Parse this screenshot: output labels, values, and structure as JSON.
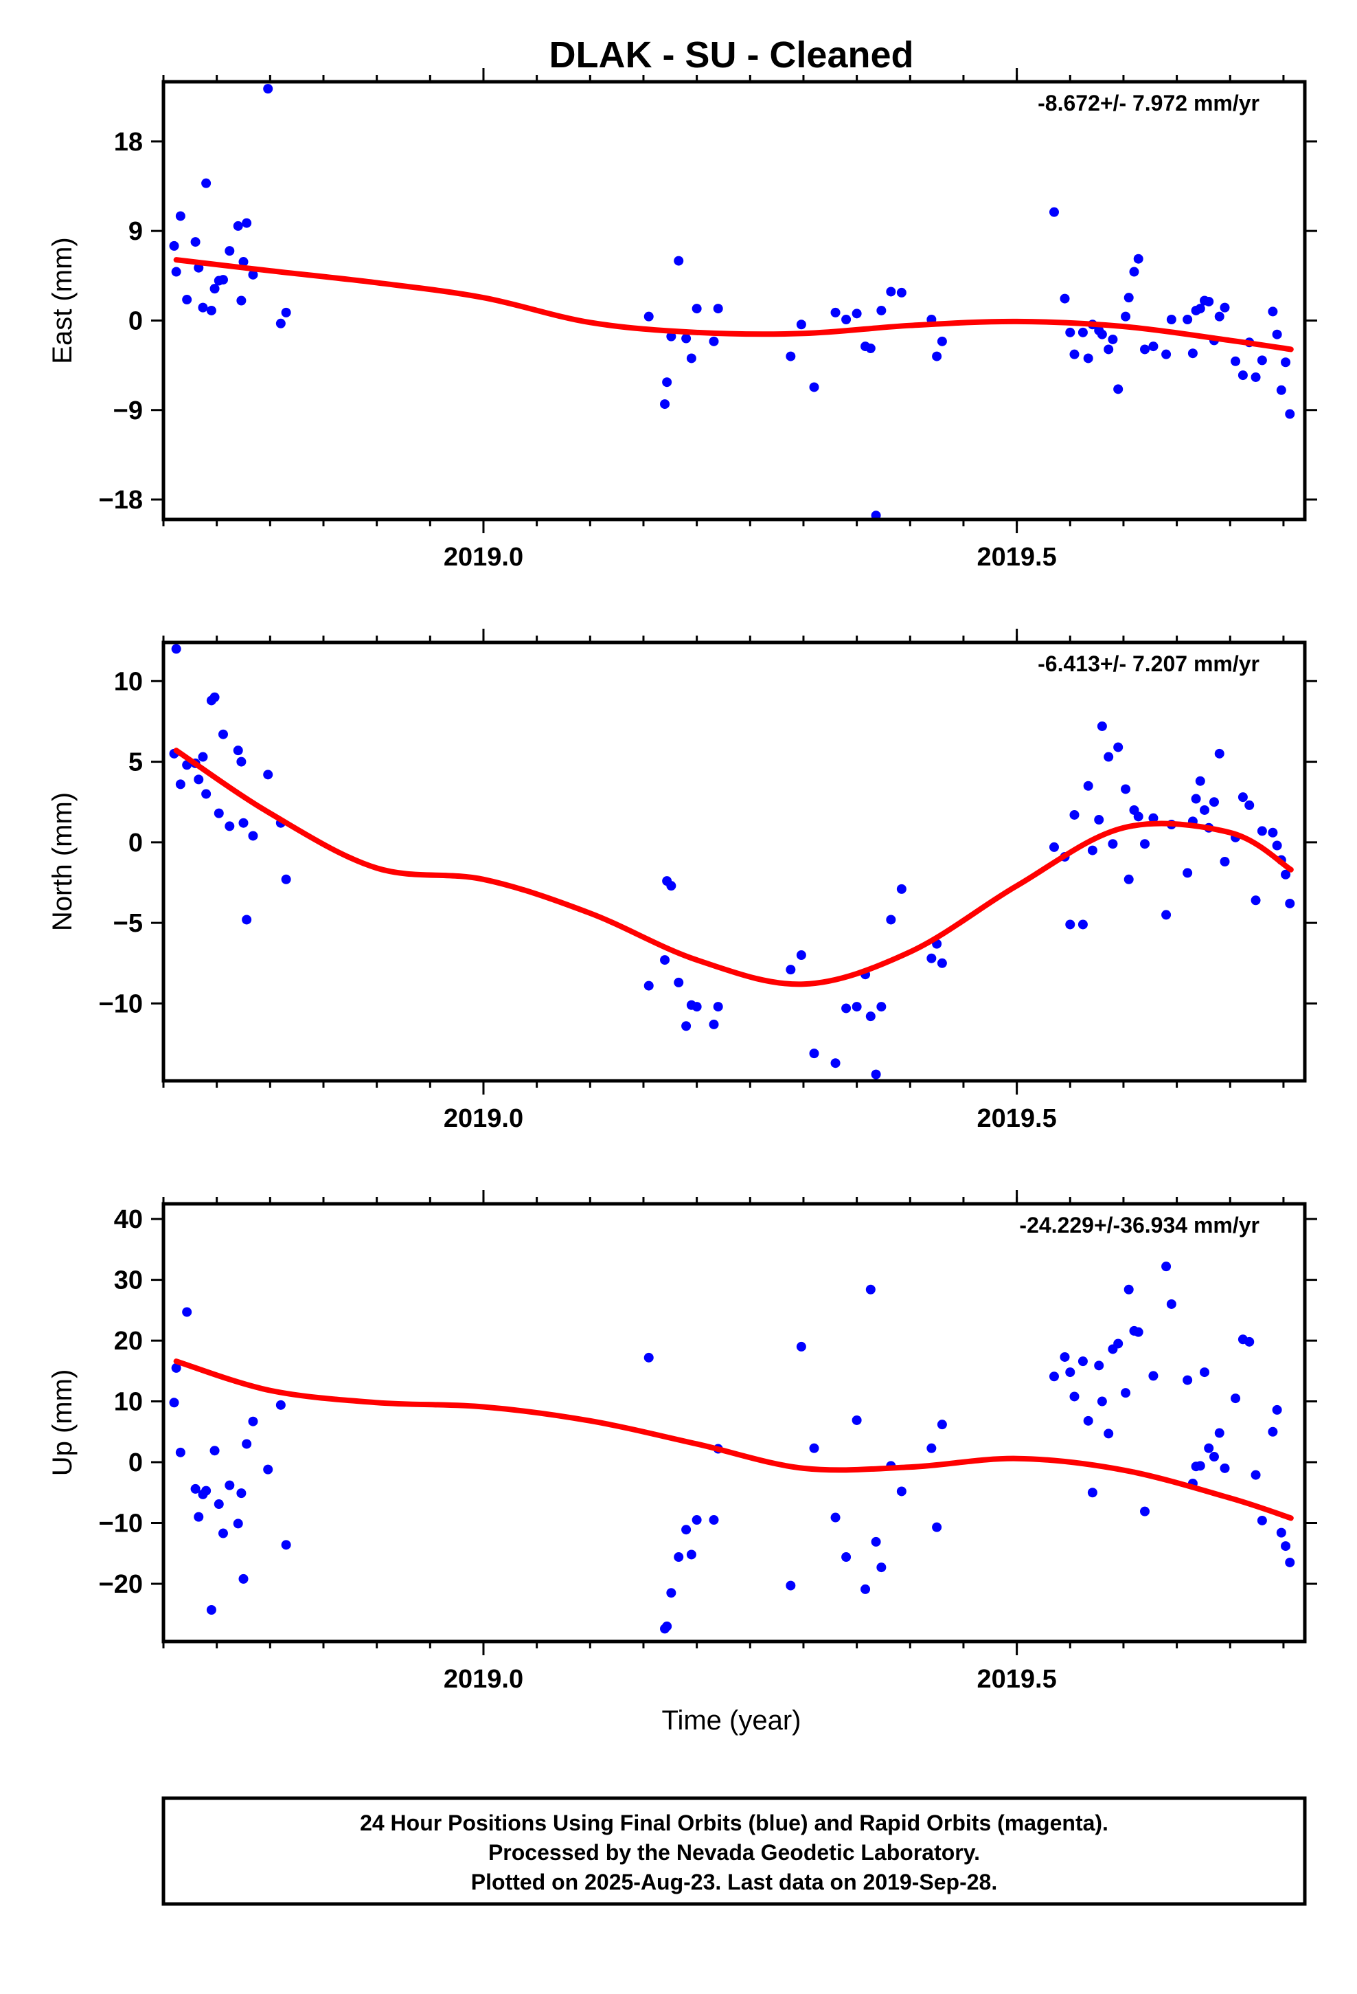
{
  "chart_data": [
    {
      "type": "scatter",
      "title": "DLAK  - SU - Cleaned",
      "xlabel": "",
      "ylabel": "East (mm)",
      "xlim": [
        2018.7,
        2019.77
      ],
      "ylim": [
        -20,
        24
      ],
      "xticks": [
        2019.0,
        2019.5
      ],
      "xtick_labels": [
        "2019.0",
        "2019.5"
      ],
      "yticks": [
        -18,
        -9,
        0,
        9,
        18
      ],
      "ytick_labels": [
        "−18",
        "−9",
        "0",
        "9",
        "18"
      ],
      "grid": false,
      "annotation": "-8.672+/- 7.972 mm/yr",
      "colors": {
        "points": "#0000ff",
        "fit": "#ff0000"
      },
      "series": [
        {
          "type": "scatter",
          "color": "#0000ff",
          "x": [
            2018.71,
            2018.712,
            2018.716,
            2018.722,
            2018.73,
            2018.733,
            2018.737,
            2018.74,
            2018.745,
            2018.748,
            2018.752,
            2018.756,
            2018.762,
            2018.77,
            2018.773,
            2018.775,
            2018.778,
            2018.784,
            2018.798,
            2018.81,
            2018.815,
            2019.155,
            2019.17,
            2019.172,
            2019.176,
            2019.183,
            2019.19,
            2019.195,
            2019.2,
            2019.216,
            2019.22,
            2019.288,
            2019.298,
            2019.31,
            2019.33,
            2019.34,
            2019.35,
            2019.358,
            2019.363,
            2019.368,
            2019.373,
            2019.382,
            2019.392,
            2019.42,
            2019.425,
            2019.43,
            2019.535,
            2019.545,
            2019.55,
            2019.554,
            2019.562,
            2019.567,
            2019.571,
            2019.577,
            2019.58,
            2019.586,
            2019.59,
            2019.595,
            2019.602,
            2019.605,
            2019.61,
            2019.614,
            2019.62,
            2019.628,
            2019.64,
            2019.645,
            2019.66,
            2019.665,
            2019.668,
            2019.672,
            2019.676,
            2019.68,
            2019.685,
            2019.69,
            2019.695,
            2019.705,
            2019.712,
            2019.718,
            2019.724,
            2019.73,
            2019.74,
            2019.744,
            2019.748,
            2019.752,
            2019.756
          ],
          "y": [
            7.5,
            4.9,
            10.5,
            2.1,
            7.9,
            5.3,
            1.3,
            13.8,
            1.0,
            3.2,
            4.0,
            4.1,
            7.0,
            9.5,
            2.0,
            5.9,
            9.8,
            4.6,
            23.3,
            -0.3,
            0.8,
            0.4,
            -8.4,
            -6.2,
            -1.6,
            6.0,
            -1.8,
            -3.8,
            1.2,
            -2.1,
            1.2,
            -3.6,
            -0.4,
            -6.7,
            0.8,
            0.1,
            0.7,
            -2.6,
            -2.8,
            -19.6,
            1.0,
            2.9,
            2.8,
            0.1,
            -3.6,
            -2.1,
            10.9,
            2.2,
            -1.2,
            -3.4,
            -1.2,
            -3.8,
            -0.4,
            -1.0,
            -1.4,
            -2.9,
            -1.9,
            -6.9,
            0.4,
            2.3,
            4.9,
            6.2,
            -2.9,
            -2.6,
            -3.4,
            0.1,
            0.1,
            -3.3,
            1.0,
            1.2,
            2.0,
            1.9,
            -2.0,
            0.4,
            1.3,
            -4.1,
            -5.5,
            -2.2,
            -5.7,
            -4.0,
            0.9,
            -1.4,
            -7.0,
            -4.2,
            -9.4
          ]
        },
        {
          "type": "line",
          "color": "#ff0000",
          "x": [
            2018.712,
            2018.8,
            2018.9,
            2019.0,
            2019.1,
            2019.2,
            2019.3,
            2019.4,
            2019.5,
            2019.6,
            2019.7,
            2019.757
          ],
          "y": [
            6.1,
            5.0,
            3.8,
            2.3,
            -0.2,
            -1.2,
            -1.3,
            -0.5,
            -0.1,
            -0.6,
            -2.0,
            -2.9
          ]
        }
      ]
    },
    {
      "type": "scatter",
      "title": "",
      "xlabel": "",
      "ylabel": "North (mm)",
      "xlim": [
        2018.7,
        2019.77
      ],
      "ylim": [
        -14.8,
        12.4
      ],
      "xticks": [
        2019.0,
        2019.5
      ],
      "xtick_labels": [
        "2019.0",
        "2019.5"
      ],
      "yticks": [
        -10,
        -5,
        0,
        5,
        10
      ],
      "ytick_labels": [
        "−10",
        "−5",
        "0",
        "5",
        "10"
      ],
      "grid": false,
      "annotation": "-6.413+/- 7.207 mm/yr",
      "colors": {
        "points": "#0000ff",
        "fit": "#ff0000"
      },
      "series": [
        {
          "type": "scatter",
          "color": "#0000ff",
          "x": [
            2018.71,
            2018.712,
            2018.716,
            2018.722,
            2018.73,
            2018.733,
            2018.737,
            2018.74,
            2018.745,
            2018.748,
            2018.752,
            2018.756,
            2018.762,
            2018.77,
            2018.773,
            2018.775,
            2018.778,
            2018.784,
            2018.798,
            2018.81,
            2018.815,
            2019.155,
            2019.17,
            2019.172,
            2019.176,
            2019.183,
            2019.19,
            2019.195,
            2019.2,
            2019.216,
            2019.22,
            2019.288,
            2019.298,
            2019.31,
            2019.33,
            2019.34,
            2019.35,
            2019.358,
            2019.363,
            2019.368,
            2019.373,
            2019.382,
            2019.392,
            2019.42,
            2019.425,
            2019.43,
            2019.535,
            2019.545,
            2019.55,
            2019.554,
            2019.562,
            2019.567,
            2019.571,
            2019.577,
            2019.58,
            2019.586,
            2019.59,
            2019.595,
            2019.602,
            2019.605,
            2019.61,
            2019.614,
            2019.62,
            2019.628,
            2019.64,
            2019.645,
            2019.66,
            2019.665,
            2019.668,
            2019.672,
            2019.676,
            2019.68,
            2019.685,
            2019.69,
            2019.695,
            2019.705,
            2019.712,
            2019.718,
            2019.724,
            2019.73,
            2019.74,
            2019.744,
            2019.748,
            2019.752,
            2019.756
          ],
          "y": [
            5.5,
            12.0,
            3.6,
            4.8,
            4.9,
            3.9,
            5.3,
            3.0,
            8.8,
            9.0,
            1.8,
            6.7,
            1.0,
            5.7,
            5.0,
            1.2,
            -4.8,
            0.4,
            4.2,
            1.2,
            -2.3,
            -8.9,
            -7.3,
            -2.4,
            -2.7,
            -8.7,
            -11.4,
            -10.1,
            -10.2,
            -11.3,
            -10.2,
            -7.9,
            -7.0,
            -13.1,
            -13.7,
            -10.3,
            -10.2,
            -8.2,
            -10.8,
            -14.4,
            -10.2,
            -4.8,
            -2.9,
            -7.2,
            -6.3,
            -7.5,
            -0.3,
            -0.9,
            -5.1,
            1.7,
            -5.1,
            3.5,
            -0.5,
            1.4,
            7.2,
            5.3,
            -0.1,
            5.9,
            3.3,
            -2.3,
            2.0,
            1.6,
            -0.1,
            1.5,
            -4.5,
            1.1,
            -1.9,
            1.3,
            2.7,
            3.8,
            2.0,
            0.9,
            2.5,
            5.5,
            -1.2,
            0.3,
            2.8,
            2.3,
            -3.6,
            0.7,
            0.6,
            -0.2,
            -1.1,
            -2.0,
            -3.8
          ]
        },
        {
          "type": "line",
          "color": "#ff0000",
          "x": [
            2018.712,
            2018.8,
            2018.9,
            2019.0,
            2019.1,
            2019.2,
            2019.3,
            2019.4,
            2019.5,
            2019.6,
            2019.7,
            2019.757
          ],
          "y": [
            5.7,
            1.8,
            -1.6,
            -2.3,
            -4.4,
            -7.3,
            -8.8,
            -6.8,
            -2.7,
            0.9,
            0.6,
            -1.7
          ]
        }
      ]
    },
    {
      "type": "scatter",
      "title": "",
      "xlabel": "Time (year)",
      "ylabel": "Up (mm)",
      "xlim": [
        2018.7,
        2019.77
      ],
      "ylim": [
        -29.5,
        42.5
      ],
      "xticks": [
        2019.0,
        2019.5
      ],
      "xtick_labels": [
        "2019.0",
        "2019.5"
      ],
      "yticks": [
        -20,
        -10,
        0,
        10,
        20,
        30,
        40
      ],
      "ytick_labels": [
        "−20",
        "−10",
        "0",
        "10",
        "20",
        "30",
        "40"
      ],
      "grid": false,
      "annotation": "-24.229+/-36.934 mm/yr",
      "colors": {
        "points": "#0000ff",
        "fit": "#ff0000"
      },
      "series": [
        {
          "type": "scatter",
          "color": "#0000ff",
          "x": [
            2018.71,
            2018.712,
            2018.716,
            2018.722,
            2018.73,
            2018.733,
            2018.737,
            2018.74,
            2018.745,
            2018.748,
            2018.752,
            2018.756,
            2018.762,
            2018.77,
            2018.773,
            2018.775,
            2018.778,
            2018.784,
            2018.798,
            2018.81,
            2018.815,
            2019.155,
            2019.17,
            2019.172,
            2019.176,
            2019.183,
            2019.19,
            2019.195,
            2019.2,
            2019.216,
            2019.22,
            2019.288,
            2019.298,
            2019.31,
            2019.33,
            2019.34,
            2019.35,
            2019.358,
            2019.363,
            2019.368,
            2019.373,
            2019.382,
            2019.392,
            2019.42,
            2019.425,
            2019.43,
            2019.535,
            2019.545,
            2019.55,
            2019.554,
            2019.562,
            2019.567,
            2019.571,
            2019.577,
            2019.58,
            2019.586,
            2019.59,
            2019.595,
            2019.602,
            2019.605,
            2019.61,
            2019.614,
            2019.62,
            2019.628,
            2019.64,
            2019.645,
            2019.66,
            2019.665,
            2019.668,
            2019.672,
            2019.676,
            2019.68,
            2019.685,
            2019.69,
            2019.695,
            2019.705,
            2019.712,
            2019.718,
            2019.724,
            2019.73,
            2019.74,
            2019.744,
            2019.748,
            2019.752,
            2019.756
          ],
          "y": [
            9.8,
            15.5,
            1.6,
            24.7,
            -4.4,
            -9.0,
            -5.3,
            -4.7,
            -24.3,
            1.9,
            -6.9,
            -11.7,
            -3.8,
            -10.1,
            -5.1,
            -19.2,
            3.0,
            6.7,
            -1.2,
            9.4,
            -13.6,
            17.2,
            -27.4,
            -27.0,
            -21.5,
            -15.6,
            -11.1,
            -15.2,
            -9.5,
            -9.5,
            2.2,
            -20.3,
            19.0,
            2.3,
            -9.1,
            -15.6,
            6.9,
            -20.9,
            28.4,
            -13.1,
            -17.3,
            -0.6,
            -4.8,
            2.3,
            -10.7,
            6.2,
            14.1,
            17.3,
            14.8,
            10.8,
            16.6,
            6.8,
            -5.0,
            15.9,
            10.0,
            4.7,
            18.6,
            19.5,
            11.4,
            28.4,
            21.6,
            21.4,
            -8.1,
            14.2,
            32.2,
            26.0,
            13.5,
            -3.5,
            -0.7,
            -0.6,
            14.8,
            2.3,
            0.9,
            4.8,
            -1.0,
            10.5,
            20.2,
            19.8,
            -2.1,
            -9.6,
            5.0,
            8.6,
            -11.6,
            -13.8,
            -16.5
          ]
        },
        {
          "type": "line",
          "color": "#ff0000",
          "x": [
            2018.712,
            2018.8,
            2018.9,
            2019.0,
            2019.1,
            2019.2,
            2019.3,
            2019.4,
            2019.5,
            2019.6,
            2019.7,
            2019.757
          ],
          "y": [
            16.6,
            11.8,
            9.8,
            9.1,
            6.8,
            3.0,
            -1.0,
            -0.8,
            0.6,
            -1.3,
            -5.9,
            -9.2
          ]
        }
      ]
    }
  ],
  "footer": {
    "lines": [
      "24 Hour Positions Using Final Orbits (blue) and Rapid Orbits (magenta).",
      "Processed by the Nevada Geodetic Laboratory.",
      "Plotted on 2025-Aug-23. Last data on 2019-Sep-28."
    ]
  }
}
